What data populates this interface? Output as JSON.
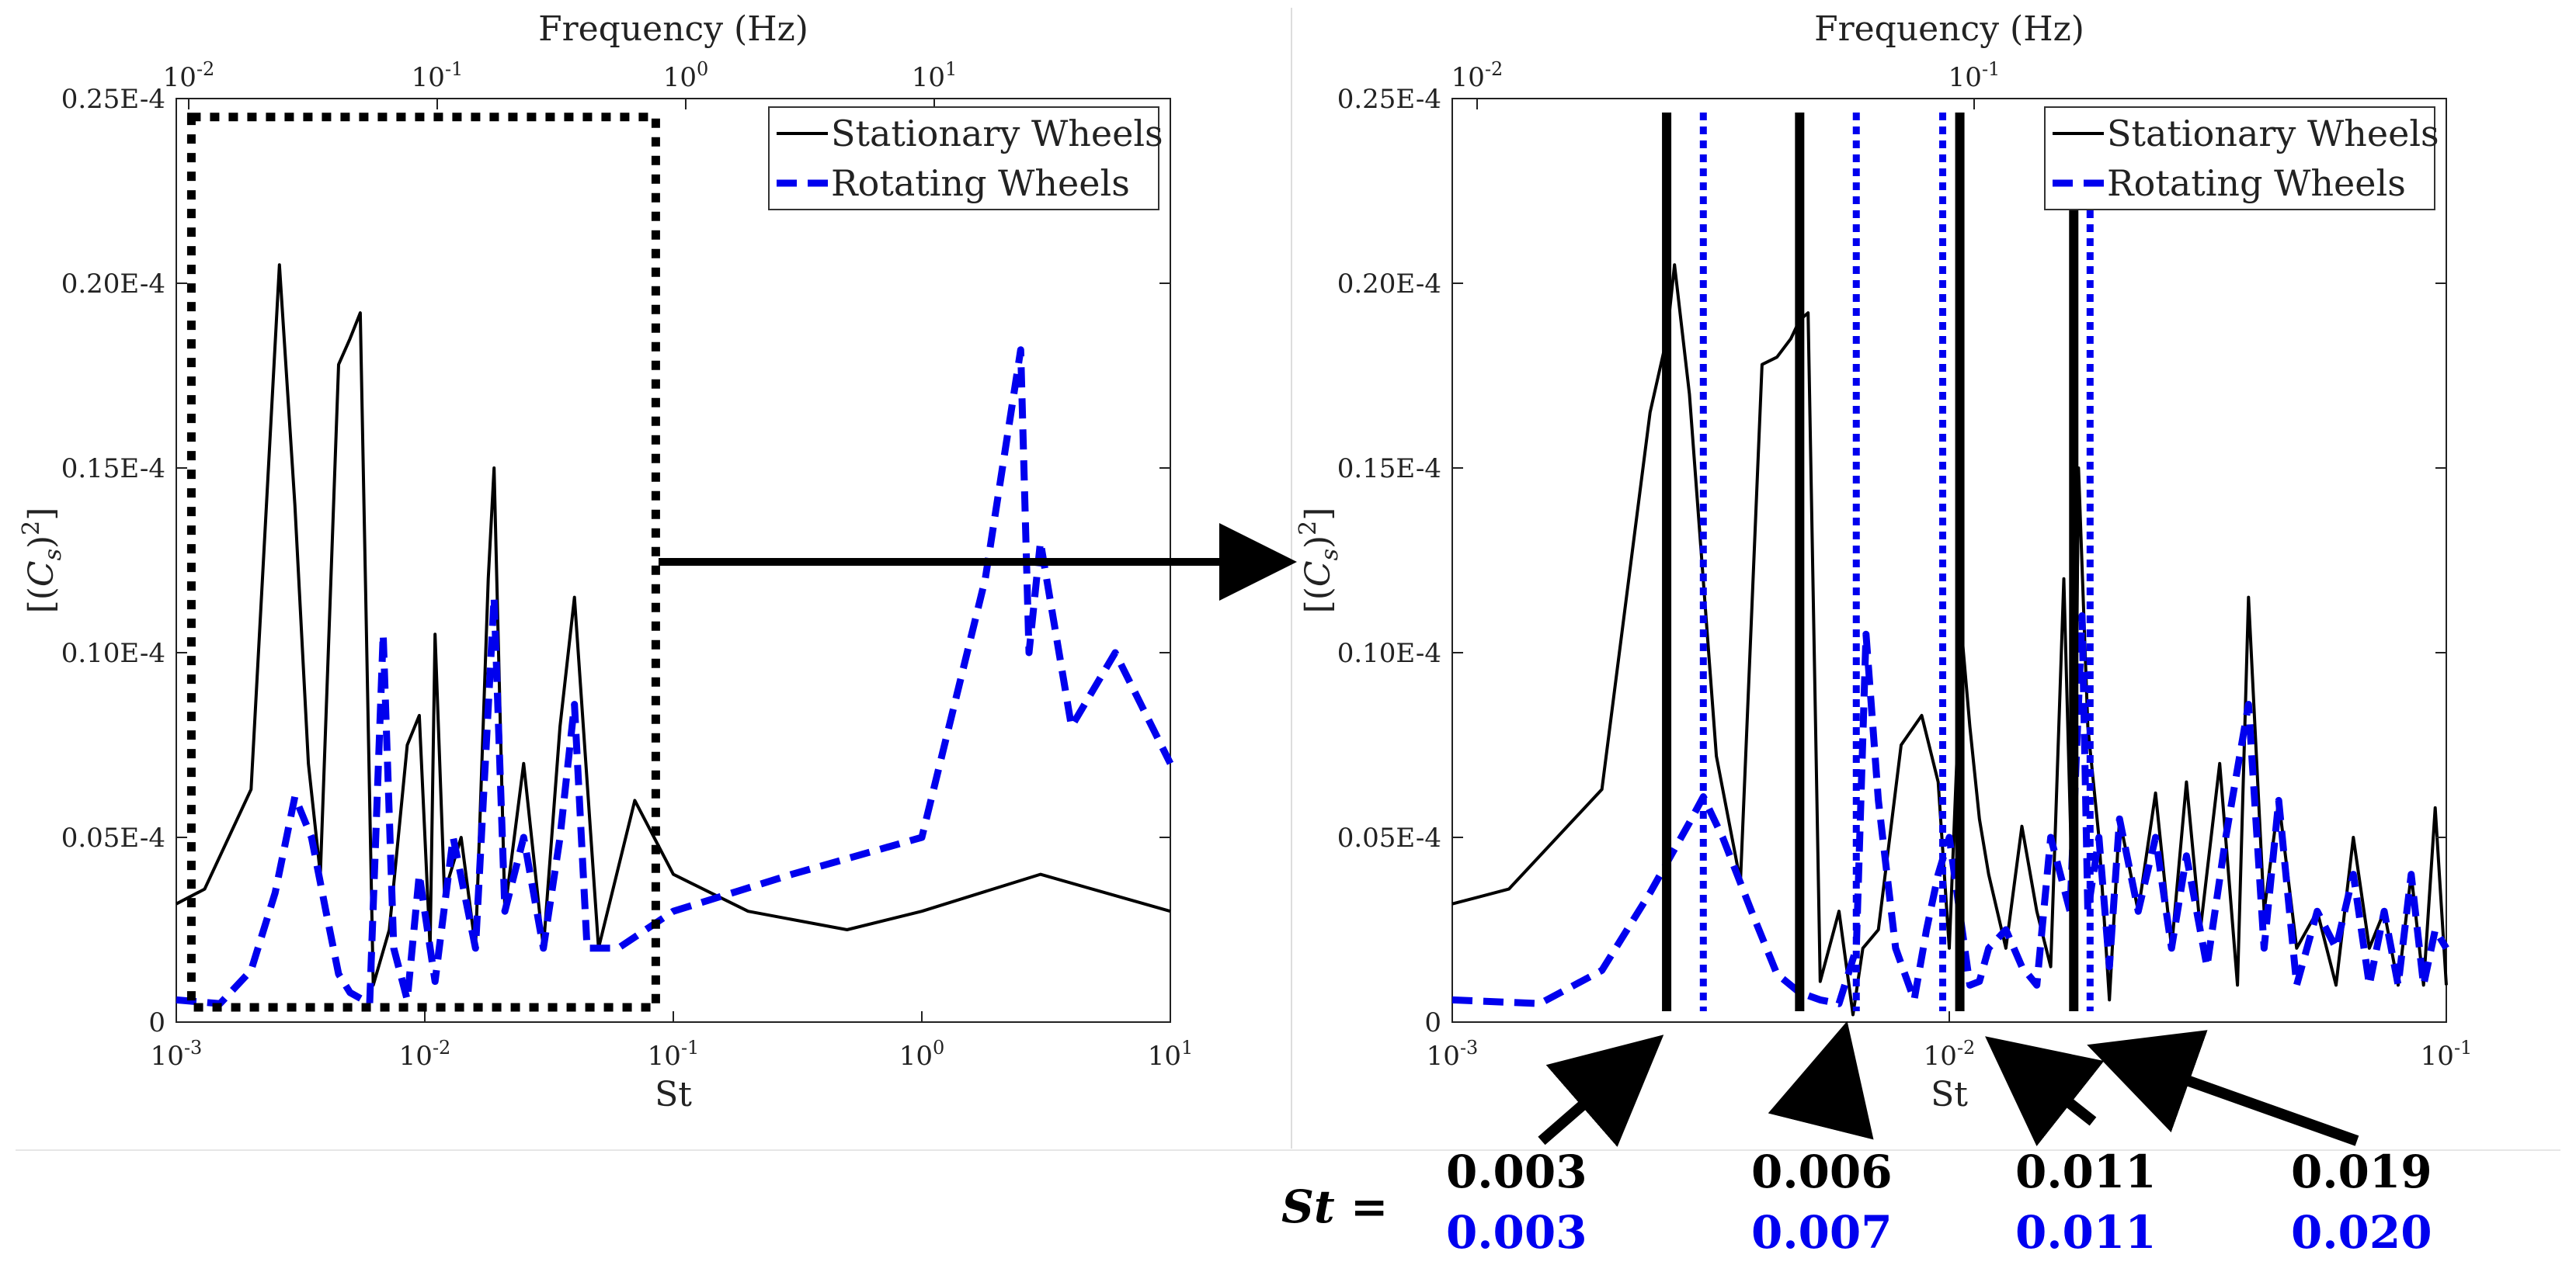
{
  "chart_data": [
    {
      "type": "line",
      "panel": "left",
      "title": "",
      "xlabel": "St",
      "ylabel": "[(C_s)^2]",
      "top_axis_label": "Frequency (Hz)",
      "xscale": "log",
      "xlim": [
        0.001,
        10
      ],
      "ylim": [
        0,
        2.5e-05
      ],
      "x_tick_labels": [
        "10^-3",
        "10^-2",
        "10^-1",
        "10^0",
        "10^1"
      ],
      "x_tick_values": [
        0.001,
        0.01,
        0.1,
        1,
        10
      ],
      "top_tick_labels": [
        "10^-2",
        "10^-1",
        "10^0",
        "10^1"
      ],
      "y_ticks": [
        {
          "value": 0,
          "label": "0"
        },
        {
          "value": 5e-06,
          "label": "0.05E-4"
        },
        {
          "value": 1e-05,
          "label": "0.10E-4"
        },
        {
          "value": 1.5e-05,
          "label": "0.15E-4"
        },
        {
          "value": 2e-05,
          "label": "0.20E-4"
        },
        {
          "value": 2.5e-05,
          "label": "0.25E-4"
        }
      ],
      "legend": {
        "position": "top-right",
        "entries": [
          "Stationary Wheels",
          "Rotating Wheels"
        ]
      },
      "zoom_box": {
        "x": [
          0.00115,
          0.085
        ],
        "y": [
          4e-07,
          2.45e-05
        ]
      },
      "series": [
        {
          "name": "Stationary Wheels",
          "color": "#000000",
          "style": "solid",
          "x": [
            0.001,
            0.0013,
            0.002,
            0.0026,
            0.003,
            0.0034,
            0.0038,
            0.0045,
            0.005,
            0.0055,
            0.0062,
            0.0072,
            0.0085,
            0.0095,
            0.0105,
            0.011,
            0.012,
            0.014,
            0.016,
            0.018,
            0.019,
            0.021,
            0.025,
            0.03,
            0.035,
            0.04,
            0.05,
            0.07,
            0.1,
            0.2,
            0.5,
            1,
            3,
            10
          ],
          "y": [
            3.2e-06,
            3.6e-06,
            6.3e-06,
            2.05e-05,
            1.4e-05,
            7e-06,
            4e-06,
            1.78e-05,
            1.85e-05,
            1.92e-05,
            1e-06,
            2.5e-06,
            7.5e-06,
            8.3e-06,
            2e-06,
            1.05e-05,
            3.5e-06,
            5e-06,
            2e-06,
            1.2e-05,
            1.5e-05,
            3e-06,
            7e-06,
            2e-06,
            8e-06,
            1.15e-05,
            2e-06,
            6e-06,
            4e-06,
            3e-06,
            2.5e-06,
            3e-06,
            4e-06,
            3e-06
          ]
        },
        {
          "name": "Rotating Wheels",
          "color": "#0000ee",
          "style": "dashed",
          "x": [
            0.001,
            0.0015,
            0.002,
            0.0025,
            0.003,
            0.0035,
            0.004,
            0.0045,
            0.005,
            0.006,
            0.0068,
            0.0075,
            0.0085,
            0.0095,
            0.011,
            0.013,
            0.016,
            0.019,
            0.021,
            0.025,
            0.03,
            0.035,
            0.04,
            0.045,
            0.06,
            0.1,
            0.3,
            1,
            1.8,
            2.5,
            2.7,
            3,
            4,
            6,
            10
          ],
          "y": [
            6e-07,
            5e-07,
            1.4e-06,
            3.5e-06,
            6.1e-06,
            5e-06,
            3e-06,
            1.3e-06,
            8e-07,
            5e-07,
            1.05e-05,
            2e-06,
            6e-07,
            4e-06,
            1.1e-06,
            5e-06,
            2e-06,
            1.15e-05,
            3e-06,
            5e-06,
            2e-06,
            5e-06,
            8.6e-06,
            2e-06,
            2e-06,
            3e-06,
            4e-06,
            5e-06,
            1.2e-05,
            1.82e-05,
            1e-05,
            1.3e-05,
            8e-06,
            1e-05,
            7e-06
          ]
        }
      ]
    },
    {
      "type": "line",
      "panel": "right",
      "title": "",
      "xlabel": "St",
      "ylabel": "[(C_s)^2]",
      "top_axis_label": "Frequency (Hz)",
      "xscale": "log",
      "xlim": [
        0.001,
        0.1
      ],
      "ylim": [
        0,
        2.5e-05
      ],
      "x_tick_labels": [
        "10^-3",
        "10^-2",
        "10^-1"
      ],
      "x_tick_values": [
        0.001,
        0.01,
        0.1
      ],
      "top_tick_labels": [
        "10^-2",
        "10^-1"
      ],
      "y_ticks": [
        {
          "value": 0,
          "label": "0"
        },
        {
          "value": 5e-06,
          "label": "0.05E-4"
        },
        {
          "value": 1e-05,
          "label": "0.10E-4"
        },
        {
          "value": 1.5e-05,
          "label": "0.15E-4"
        },
        {
          "value": 2e-05,
          "label": "0.20E-4"
        },
        {
          "value": 2.5e-05,
          "label": "0.25E-4"
        }
      ],
      "legend": {
        "position": "top-right",
        "entries": [
          "Stationary Wheels",
          "Rotating Wheels"
        ]
      },
      "vertical_lines": [
        {
          "x": 0.0027,
          "color": "#000000",
          "style": "solid"
        },
        {
          "x": 0.005,
          "color": "#000000",
          "style": "solid"
        },
        {
          "x": 0.0105,
          "color": "#000000",
          "style": "solid"
        },
        {
          "x": 0.0178,
          "color": "#000000",
          "style": "solid"
        },
        {
          "x": 0.0032,
          "color": "#0000ee",
          "style": "dotted"
        },
        {
          "x": 0.0065,
          "color": "#0000ee",
          "style": "dotted"
        },
        {
          "x": 0.0097,
          "color": "#0000ee",
          "style": "dotted"
        },
        {
          "x": 0.0192,
          "color": "#0000ee",
          "style": "dotted"
        }
      ],
      "series": [
        {
          "name": "Stationary Wheels",
          "color": "#000000",
          "style": "solid",
          "x": [
            0.001,
            0.0013,
            0.002,
            0.0025,
            0.0027,
            0.0028,
            0.003,
            0.0034,
            0.0038,
            0.0042,
            0.0045,
            0.0048,
            0.005,
            0.0052,
            0.0055,
            0.006,
            0.0064,
            0.0067,
            0.0072,
            0.008,
            0.0088,
            0.0095,
            0.01,
            0.0106,
            0.011,
            0.0115,
            0.012,
            0.013,
            0.014,
            0.015,
            0.016,
            0.017,
            0.0178,
            0.0182,
            0.019,
            0.02,
            0.021,
            0.022,
            0.024,
            0.026,
            0.028,
            0.03,
            0.032,
            0.035,
            0.038,
            0.04,
            0.043,
            0.046,
            0.05,
            0.055,
            0.06,
            0.065,
            0.07,
            0.075,
            0.08,
            0.085,
            0.09,
            0.095,
            0.1
          ],
          "y": [
            3.2e-06,
            3.6e-06,
            6.3e-06,
            1.65e-05,
            1.85e-05,
            2.05e-05,
            1.7e-05,
            7.2e-06,
            3.8e-06,
            1.78e-05,
            1.8e-05,
            1.85e-05,
            1.9e-05,
            1.92e-05,
            1.1e-06,
            3e-06,
            2e-07,
            2e-06,
            2.5e-06,
            7.5e-06,
            8.3e-06,
            6.5e-06,
            2e-06,
            1.05e-05,
            8e-06,
            5.5e-06,
            4e-06,
            2e-06,
            5.3e-06,
            3e-06,
            1.5e-06,
            1.2e-05,
            2e-06,
            1.5e-05,
            8e-06,
            5e-06,
            6e-07,
            5.5e-06,
            3e-06,
            6.2e-06,
            2e-06,
            6.5e-06,
            2.5e-06,
            7e-06,
            1e-06,
            1.15e-05,
            3e-06,
            6e-06,
            2e-06,
            3e-06,
            1e-06,
            5e-06,
            2e-06,
            3e-06,
            1e-06,
            4e-06,
            1e-06,
            5.8e-06,
            1e-06
          ]
        },
        {
          "name": "Rotating Wheels",
          "color": "#0000ee",
          "style": "dashed",
          "x": [
            0.001,
            0.0015,
            0.002,
            0.0025,
            0.003,
            0.0032,
            0.0035,
            0.004,
            0.0045,
            0.005,
            0.0055,
            0.006,
            0.0065,
            0.0068,
            0.0072,
            0.0078,
            0.0085,
            0.009,
            0.0095,
            0.01,
            0.011,
            0.0115,
            0.012,
            0.013,
            0.014,
            0.015,
            0.016,
            0.0175,
            0.0185,
            0.019,
            0.02,
            0.021,
            0.022,
            0.024,
            0.026,
            0.028,
            0.03,
            0.033,
            0.036,
            0.04,
            0.043,
            0.046,
            0.05,
            0.055,
            0.06,
            0.065,
            0.07,
            0.075,
            0.08,
            0.085,
            0.09,
            0.095,
            0.1
          ],
          "y": [
            6e-07,
            5e-07,
            1.4e-06,
            3.5e-06,
            5.4e-06,
            6.1e-06,
            5e-06,
            3e-06,
            1.3e-06,
            8e-07,
            6e-07,
            5e-07,
            2e-06,
            1.05e-05,
            6e-06,
            2e-06,
            6e-07,
            2.5e-06,
            4e-06,
            5e-06,
            1e-06,
            1.1e-06,
            2e-06,
            2.5e-06,
            1.5e-06,
            1e-06,
            5e-06,
            3e-06,
            1.1e-05,
            3e-06,
            5e-06,
            1.5e-06,
            5.5e-06,
            3e-06,
            5e-06,
            2e-06,
            4.5e-06,
            1.5e-06,
            5e-06,
            8.6e-06,
            2e-06,
            6e-06,
            1e-06,
            3e-06,
            2e-06,
            4e-06,
            1e-06,
            3e-06,
            1e-06,
            4e-06,
            1e-06,
            2.5e-06,
            2e-06
          ]
        }
      ]
    }
  ],
  "annotation": {
    "st_label": "St =",
    "stationary_values": [
      "0.003",
      "0.006",
      "0.011",
      "0.019"
    ],
    "rotating_values": [
      "0.003",
      "0.007",
      "0.011",
      "0.020"
    ],
    "stationary_color": "#000000",
    "rotating_color": "#0000ee"
  }
}
